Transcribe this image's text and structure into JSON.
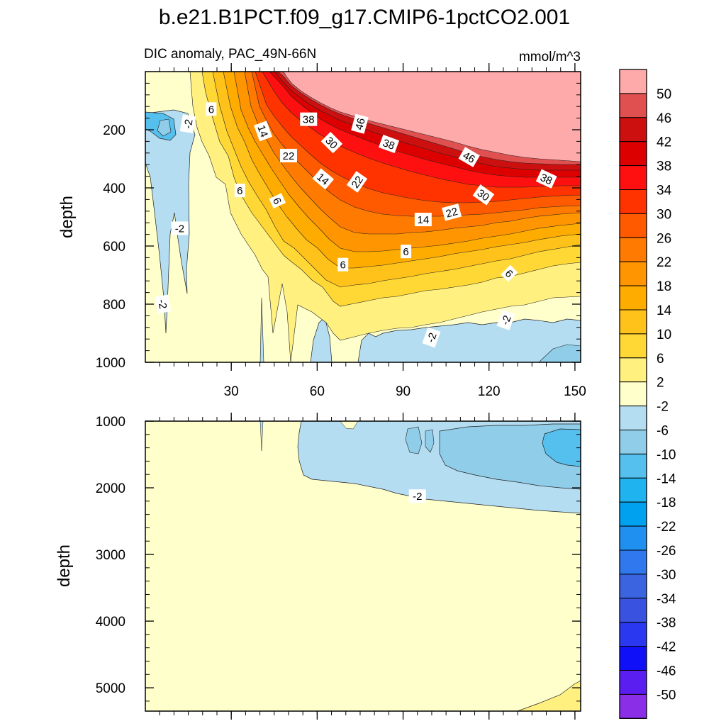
{
  "title": "b.e21.B1PCT.f09_g17.CMIP6-1pctCO2.001",
  "chart_data": [
    {
      "type": "contour",
      "panel": "upper",
      "subtitle_left": "DIC anomaly, PAC_49N-66N",
      "subtitle_right": "mmol/m^3",
      "xlabel": "",
      "ylabel": "depth",
      "xlim": [
        0,
        152
      ],
      "ylim": [
        1000,
        0
      ],
      "xticks": [
        30,
        60,
        90,
        120,
        150
      ],
      "xtick_labels": [
        "30",
        "60",
        "90",
        "120",
        "150"
      ],
      "yticks": [
        200,
        400,
        600,
        800,
        1000
      ],
      "ytick_labels": [
        "200",
        "400",
        "600",
        "800",
        "1000"
      ],
      "contour_labels": [
        {
          "text": "6",
          "x": 23,
          "y": 130,
          "rot": 0
        },
        {
          "text": "-2",
          "x": 15,
          "y": 180,
          "rot": -80
        },
        {
          "text": "38",
          "x": 57,
          "y": 165,
          "rot": 0
        },
        {
          "text": "46",
          "x": 75,
          "y": 180,
          "rot": -75
        },
        {
          "text": "14",
          "x": 41,
          "y": 205,
          "rot": 70
        },
        {
          "text": "30",
          "x": 65,
          "y": 245,
          "rot": 45
        },
        {
          "text": "38",
          "x": 85,
          "y": 250,
          "rot": 20
        },
        {
          "text": "46",
          "x": 113,
          "y": 295,
          "rot": 30
        },
        {
          "text": "22",
          "x": 50,
          "y": 290,
          "rot": 0
        },
        {
          "text": "14",
          "x": 62,
          "y": 370,
          "rot": 40
        },
        {
          "text": "22",
          "x": 74,
          "y": 380,
          "rot": -55
        },
        {
          "text": "38",
          "x": 140,
          "y": 370,
          "rot": 25
        },
        {
          "text": "6",
          "x": 33,
          "y": 410,
          "rot": 0
        },
        {
          "text": "30",
          "x": 118,
          "y": 425,
          "rot": 35
        },
        {
          "text": "6",
          "x": 46,
          "y": 445,
          "rot": 65
        },
        {
          "text": "22",
          "x": 107,
          "y": 485,
          "rot": -15
        },
        {
          "text": "14",
          "x": 97,
          "y": 510,
          "rot": 0
        },
        {
          "text": "-2",
          "x": 12,
          "y": 540,
          "rot": 0
        },
        {
          "text": "6",
          "x": 91,
          "y": 620,
          "rot": 0
        },
        {
          "text": "6",
          "x": 69,
          "y": 665,
          "rot": 0
        },
        {
          "text": "6",
          "x": 127,
          "y": 695,
          "rot": 45
        },
        {
          "text": "-2",
          "x": 6,
          "y": 800,
          "rot": 80
        },
        {
          "text": "-2",
          "x": 126,
          "y": 855,
          "rot": -70
        },
        {
          "text": "-2",
          "x": 100,
          "y": 915,
          "rot": -70
        }
      ]
    },
    {
      "type": "contour",
      "panel": "lower",
      "xlabel": "",
      "ylabel": "depth",
      "xlim": [
        0,
        152
      ],
      "ylim": [
        5350,
        1000
      ],
      "xticks": [
        30,
        60,
        90,
        120,
        150
      ],
      "yticks": [
        1000,
        2000,
        3000,
        4000,
        5000
      ],
      "ytick_labels": [
        "1000",
        "2000",
        "3000",
        "4000",
        "5000"
      ],
      "contour_labels": [
        {
          "text": "-2",
          "x": 95,
          "y": 2130,
          "rot": 0
        }
      ]
    }
  ],
  "colorbar": {
    "levels": [
      "50",
      "46",
      "42",
      "38",
      "34",
      "30",
      "26",
      "22",
      "18",
      "14",
      "10",
      "6",
      "2",
      "-2",
      "-6",
      "-10",
      "-14",
      "-18",
      "-22",
      "-26",
      "-30",
      "-34",
      "-38",
      "-42",
      "-46",
      "-50"
    ],
    "colors": [
      "#ffaaaa",
      "#e05050",
      "#cc1010",
      "#dd0000",
      "#ff1010",
      "#ff3300",
      "#ff5a00",
      "#ff7a00",
      "#ff9500",
      "#ffac00",
      "#ffc21a",
      "#ffd835",
      "#fff080",
      "#ffffcc",
      "#b4ddf2",
      "#8fcde9",
      "#55c0ee",
      "#1fb4f0",
      "#00a2f0",
      "#1f8ff0",
      "#2f78ee",
      "#3a64e0",
      "#3a52e0",
      "#2a38f0",
      "#1010f8",
      "#5a1ef0",
      "#8a2ee8"
    ]
  }
}
